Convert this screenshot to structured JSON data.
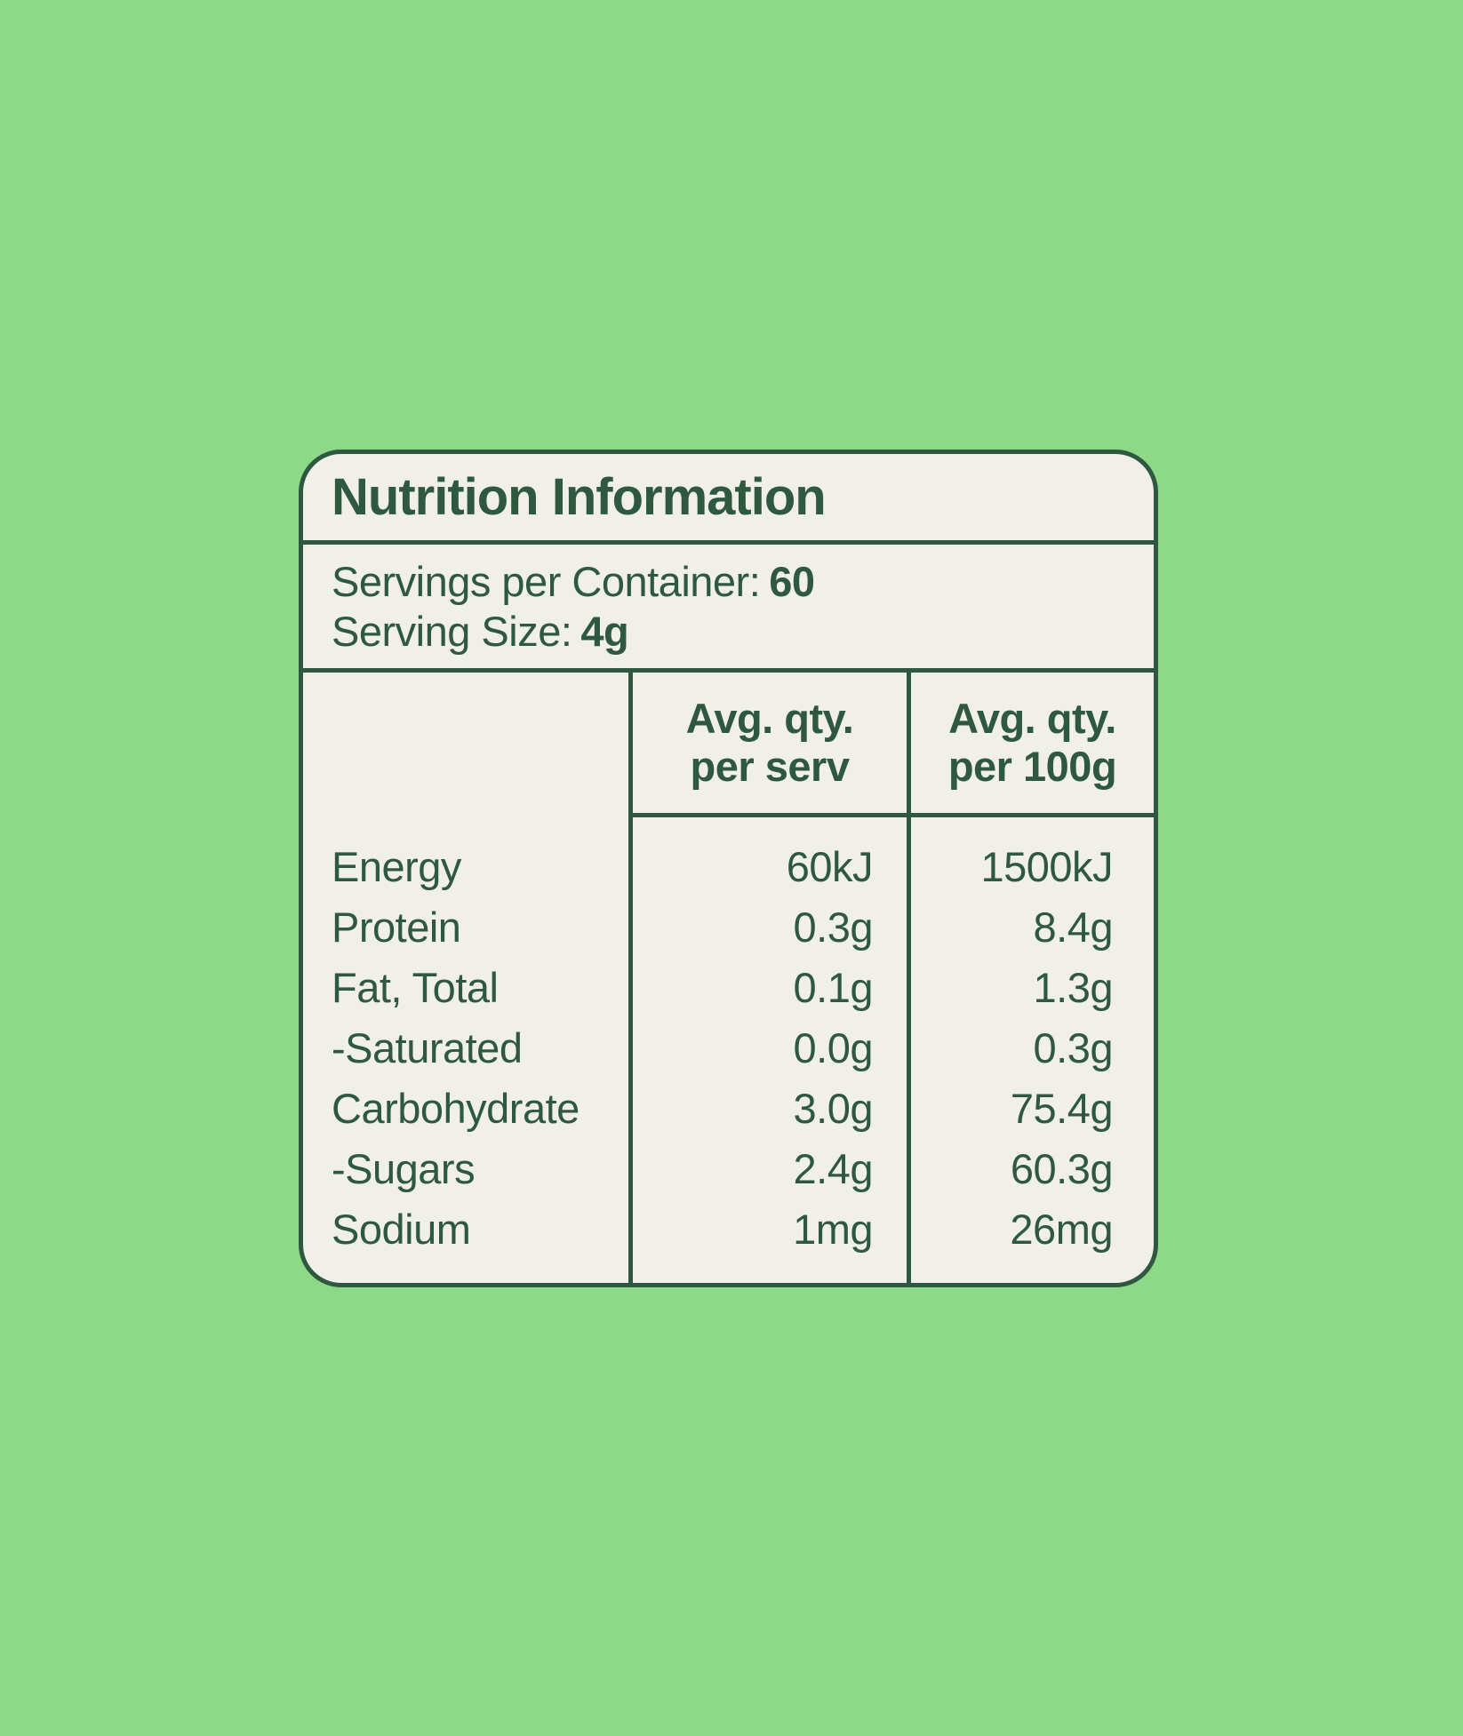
{
  "colors": {
    "background": "#8ED988",
    "card_background": "#F1EFE9",
    "ink": "#2E5840"
  },
  "label": {
    "title": "Nutrition Information",
    "servings_per_container": {
      "label": "Servings per Container:",
      "value": "60"
    },
    "serving_size": {
      "label": "Serving Size:",
      "value": "4g"
    },
    "columns": {
      "per_serv": {
        "line1": "Avg. qty.",
        "line2": "per serv"
      },
      "per_100g": {
        "line1": "Avg. qty.",
        "line2": "per 100g"
      }
    },
    "rows": [
      {
        "label": "Energy",
        "per_serv": "60kJ",
        "per_100g": "1500kJ"
      },
      {
        "label": "Protein",
        "per_serv": "0.3g",
        "per_100g": "8.4g"
      },
      {
        "label": "Fat, Total",
        "per_serv": "0.1g",
        "per_100g": "1.3g"
      },
      {
        "label": "-Saturated",
        "per_serv": "0.0g",
        "per_100g": "0.3g"
      },
      {
        "label": "Carbohydrate",
        "per_serv": "3.0g",
        "per_100g": "75.4g"
      },
      {
        "label": "-Sugars",
        "per_serv": "2.4g",
        "per_100g": "60.3g"
      },
      {
        "label": "Sodium",
        "per_serv": "1mg",
        "per_100g": "26mg"
      }
    ]
  },
  "chart_data": {
    "type": "table",
    "title": "Nutrition Information",
    "columns": [
      "",
      "Avg. qty. per serv",
      "Avg. qty. per 100g"
    ],
    "rows": [
      [
        "Energy",
        "60kJ",
        "1500kJ"
      ],
      [
        "Protein",
        "0.3g",
        "8.4g"
      ],
      [
        "Fat, Total",
        "0.1g",
        "1.3g"
      ],
      [
        "-Saturated",
        "0.0g",
        "0.3g"
      ],
      [
        "Carbohydrate",
        "3.0g",
        "75.4g"
      ],
      [
        "-Sugars",
        "2.4g",
        "60.3g"
      ],
      [
        "Sodium",
        "1mg",
        "26mg"
      ]
    ]
  }
}
